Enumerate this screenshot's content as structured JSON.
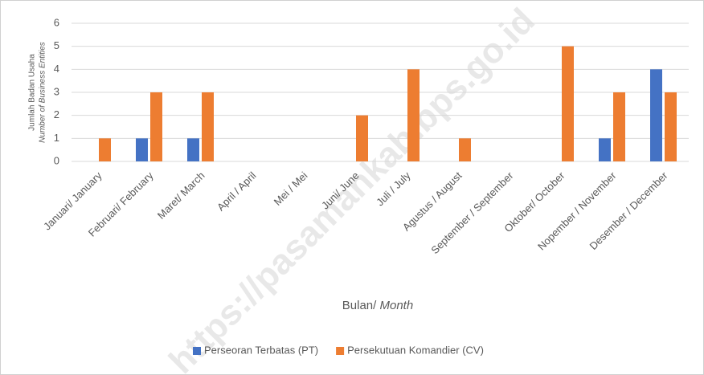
{
  "chart_data": {
    "type": "bar",
    "ylabel": [
      "Jumlah Badan Usaha",
      "Number of Business Entities"
    ],
    "xlabel": [
      "Bulan/",
      "Month"
    ],
    "watermark": "https://pasamankab.bps.go.id",
    "categories": [
      "Januari/ January",
      "Februari/ February",
      "Maret/ March",
      "April / April",
      "Mei / Mei",
      "Juni/ June",
      "Juli / July",
      "Agustus / August",
      "September / September",
      "Oktober/ October",
      "Nopember / November",
      "Desember / December"
    ],
    "series": [
      {
        "name": "Perseoran Terbatas (PT)",
        "color": "#4472c4",
        "values": [
          0,
          1,
          1,
          0,
          0,
          0,
          0,
          0,
          0,
          0,
          1,
          4
        ]
      },
      {
        "name": "Persekutuan Komandier (CV)",
        "color": "#ed7d31",
        "values": [
          1,
          3,
          3,
          0,
          0,
          2,
          4,
          1,
          0,
          5,
          3,
          3
        ]
      }
    ],
    "ylim": [
      0,
      6
    ],
    "yticks": [
      0,
      1,
      2,
      3,
      4,
      5,
      6
    ],
    "grid": true,
    "legend": "bottom"
  }
}
